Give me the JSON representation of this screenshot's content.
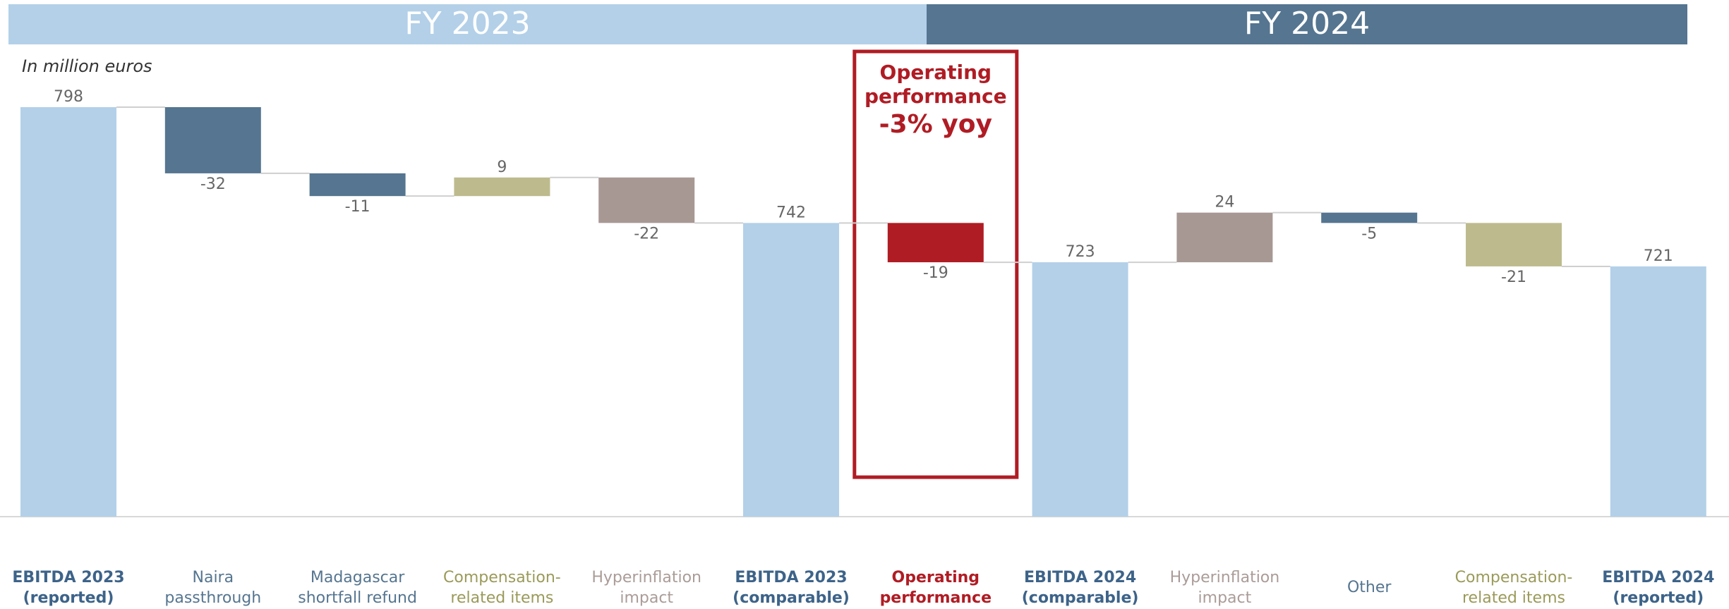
{
  "chart_data": {
    "type": "waterfall",
    "headers": [
      {
        "text": "FY 2023",
        "color": "#b3d0e8"
      },
      {
        "text": "FY 2024",
        "color": "#557590"
      }
    ],
    "subtitle": "In million euros",
    "annotation": {
      "title": "Operating performance",
      "value": "-3% yoy",
      "color": "#b01c24"
    },
    "categories": [
      "EBITDA 2023\n(reported)",
      "Naira\npassthrough",
      "Madagascar\nshortfall refund",
      "Compensation-\nrelated items",
      "Hyperinflation\nimpact",
      "EBITDA 2023\n(comparable)",
      "Operating\nperformance",
      "EBITDA 2024\n(comparable)",
      "Hyperinflation\nimpact",
      "Other",
      "Compensation-\nrelated items",
      "EBITDA 2024\n(reported)"
    ],
    "measure": [
      "absolute",
      "relative",
      "relative",
      "relative",
      "relative",
      "absolute",
      "relative",
      "absolute",
      "relative",
      "relative",
      "relative",
      "absolute"
    ],
    "values": [
      798,
      -32,
      -11,
      9,
      -22,
      742,
      -19,
      723,
      24,
      -5,
      -21,
      721
    ],
    "colors": [
      "#b3d0e8",
      "#557590",
      "#557590",
      "#bdbb8e",
      "#a89894",
      "#b3d0e8",
      "#b01c24",
      "#b3d0e8",
      "#a89894",
      "#557590",
      "#bdbb8e",
      "#b3d0e8"
    ],
    "label_colors": [
      "#3d6389",
      "#557590",
      "#557590",
      "#9a9a5a",
      "#aa9c98",
      "#3d6389",
      "#b01c24",
      "#3d6389",
      "#aa9c98",
      "#557590",
      "#9a9a5a",
      "#3d6389"
    ],
    "label_bold": [
      true,
      false,
      false,
      false,
      false,
      true,
      true,
      true,
      false,
      false,
      false,
      true
    ],
    "ylim": [
      600,
      798
    ]
  }
}
